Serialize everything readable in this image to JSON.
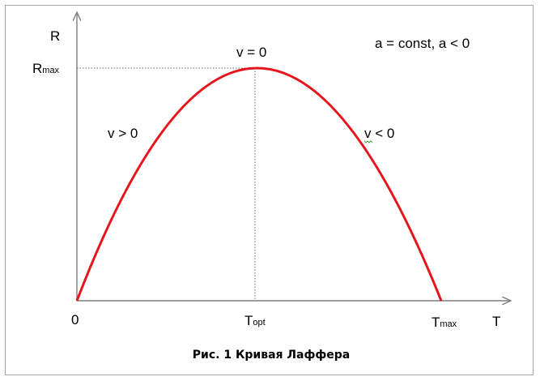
{
  "figure": {
    "axis_y_label": "R",
    "axis_x_label": "T",
    "origin_label": "0",
    "r_max": {
      "main": "R",
      "sub": "max"
    },
    "t_opt": {
      "main": "T",
      "sub": "opt"
    },
    "t_max": {
      "main": "T",
      "sub": "max"
    },
    "peak_label": "v = 0",
    "left_label": "v > 0",
    "right_label": "v < 0",
    "condition_label": "a = const, a < 0",
    "caption": "Рис. 1 Кривая Лаффера",
    "curve_color": "#e8141c",
    "axis_color": "#7f7f7f"
  }
}
